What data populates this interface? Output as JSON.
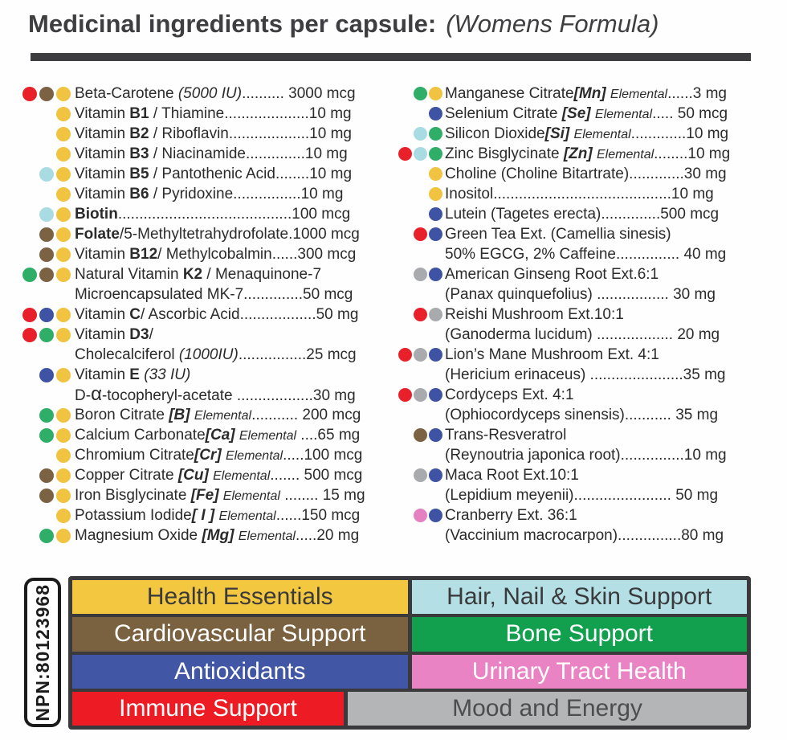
{
  "title": {
    "main": "Medicinal ingredients per capsule:",
    "sub": "(Womens Formula)"
  },
  "npn": "NPN:80123968",
  "dot_colors": {
    "red": "#e8202a",
    "brown": "#7b6243",
    "yellow": "#f0c340",
    "lightblue": "#a9dce2",
    "green": "#2fae68",
    "blue": "#3f53a4",
    "gray": "#a8aaad",
    "pink": "#e581c1"
  },
  "ingredients": {
    "left": [
      {
        "dots": [
          "red",
          "brown",
          "yellow"
        ],
        "segments": [
          {
            "t": "Beta-Carotene ",
            "s": ""
          },
          {
            "t": "(5000 IU)",
            "s": "i"
          },
          {
            "t": ".......... 3000 mcg",
            "s": ""
          }
        ]
      },
      {
        "dots": [
          "yellow"
        ],
        "segments": [
          {
            "t": "Vitamin ",
            "s": ""
          },
          {
            "t": "B1",
            "s": "b"
          },
          {
            "t": " / Thiamine....................10 mg",
            "s": ""
          }
        ]
      },
      {
        "dots": [
          "yellow"
        ],
        "segments": [
          {
            "t": "Vitamin ",
            "s": ""
          },
          {
            "t": "B2",
            "s": "b"
          },
          {
            "t": " / Riboflavin...................10 mg",
            "s": ""
          }
        ]
      },
      {
        "dots": [
          "yellow"
        ],
        "segments": [
          {
            "t": "Vitamin ",
            "s": ""
          },
          {
            "t": "B3",
            "s": "b"
          },
          {
            "t": " / Niacinamide..............10 mg",
            "s": ""
          }
        ]
      },
      {
        "dots": [
          "lightblue",
          "yellow"
        ],
        "segments": [
          {
            "t": "Vitamin ",
            "s": ""
          },
          {
            "t": "B5",
            "s": "b"
          },
          {
            "t": " / Pantothenic Acid........10 mg",
            "s": ""
          }
        ]
      },
      {
        "dots": [
          "yellow"
        ],
        "segments": [
          {
            "t": "Vitamin ",
            "s": ""
          },
          {
            "t": "B6",
            "s": "b"
          },
          {
            "t": " / Pyridoxine................10 mg",
            "s": ""
          }
        ]
      },
      {
        "dots": [
          "lightblue",
          "yellow"
        ],
        "segments": [
          {
            "t": "Biotin",
            "s": "b"
          },
          {
            "t": ".........................................100  mcg",
            "s": ""
          }
        ]
      },
      {
        "dots": [
          "brown",
          "yellow"
        ],
        "segments": [
          {
            "t": "Folate",
            "s": "b"
          },
          {
            "t": "/5-Methyltetrahydrofolate.1000 mcg",
            "s": ""
          }
        ]
      },
      {
        "dots": [
          "brown",
          "yellow"
        ],
        "segments": [
          {
            "t": "Vitamin ",
            "s": ""
          },
          {
            "t": "B12",
            "s": "b"
          },
          {
            "t": "/ Methylcobalmin......300 mcg",
            "s": ""
          }
        ]
      },
      {
        "dots": [
          "green",
          "brown",
          "yellow"
        ],
        "segments": [
          {
            "t": "Natural Vitamin ",
            "s": ""
          },
          {
            "t": "K2",
            "s": "b"
          },
          {
            "t": " / Menaquinone-7",
            "s": ""
          }
        ]
      },
      {
        "dots": [],
        "segments": [
          {
            "t": "Microencapsulated  MK-7..............50  mcg",
            "s": ""
          }
        ]
      },
      {
        "dots": [
          "red",
          "blue",
          "yellow"
        ],
        "segments": [
          {
            "t": "Vitamin ",
            "s": ""
          },
          {
            "t": "C",
            "s": "b"
          },
          {
            "t": "/ Ascorbic Acid..................50 mg",
            "s": ""
          }
        ]
      },
      {
        "dots": [
          "red",
          "green",
          "yellow"
        ],
        "segments": [
          {
            "t": "Vitamin ",
            "s": ""
          },
          {
            "t": "D3",
            "s": "b"
          },
          {
            "t": "/",
            "s": ""
          }
        ]
      },
      {
        "dots": [],
        "segments": [
          {
            "t": "Cholecalciferol ",
            "s": ""
          },
          {
            "t": "(1000IU)",
            "s": "i"
          },
          {
            "t": "................25  mcg",
            "s": ""
          }
        ]
      },
      {
        "dots": [
          "blue",
          "yellow"
        ],
        "segments": [
          {
            "t": "Vitamin ",
            "s": ""
          },
          {
            "t": "E",
            "s": "b"
          },
          {
            "t": " ",
            "s": ""
          },
          {
            "t": "(33 IU)",
            "s": "i"
          }
        ]
      },
      {
        "dots": [],
        "segments": [
          {
            "t": "D-",
            "s": ""
          },
          {
            "t": "α",
            "s": "a"
          },
          {
            "t": "-tocopheryl-acetate  ..................30 mg",
            "s": ""
          }
        ]
      },
      {
        "dots": [
          "green",
          "yellow"
        ],
        "segments": [
          {
            "t": "Boron Citrate ",
            "s": ""
          },
          {
            "t": "[B]",
            "s": "bi"
          },
          {
            "t": " ",
            "s": ""
          },
          {
            "t": "Elemental",
            "s": "e"
          },
          {
            "t": "........... 200 mcg",
            "s": ""
          }
        ]
      },
      {
        "dots": [
          "green",
          "yellow"
        ],
        "segments": [
          {
            "t": "Calcium Carbonate",
            "s": ""
          },
          {
            "t": "[Ca]",
            "s": "bi"
          },
          {
            "t": " ",
            "s": ""
          },
          {
            "t": "Elemental",
            "s": "e"
          },
          {
            "t": " ....65 mg",
            "s": ""
          }
        ]
      },
      {
        "dots": [
          "yellow"
        ],
        "segments": [
          {
            "t": "Chromium Citrate",
            "s": ""
          },
          {
            "t": "[Cr]",
            "s": "bi"
          },
          {
            "t": " ",
            "s": ""
          },
          {
            "t": "Elemental",
            "s": "e"
          },
          {
            "t": ".....100 mcg",
            "s": ""
          }
        ]
      },
      {
        "dots": [
          "brown",
          "yellow"
        ],
        "segments": [
          {
            "t": "Copper Citrate ",
            "s": ""
          },
          {
            "t": "[Cu]",
            "s": "bi"
          },
          {
            "t": " ",
            "s": ""
          },
          {
            "t": "Elemental",
            "s": "e"
          },
          {
            "t": "....... 500 mcg",
            "s": ""
          }
        ]
      },
      {
        "dots": [
          "brown",
          "yellow"
        ],
        "segments": [
          {
            "t": "Iron Bisglycinate ",
            "s": ""
          },
          {
            "t": "[Fe]",
            "s": "bi"
          },
          {
            "t": " ",
            "s": ""
          },
          {
            "t": "Elemental",
            "s": "e"
          },
          {
            "t": " ........ 15 mg",
            "s": ""
          }
        ]
      },
      {
        "dots": [
          "yellow"
        ],
        "segments": [
          {
            "t": "Potassium Iodide",
            "s": ""
          },
          {
            "t": "[ I ]",
            "s": "bi"
          },
          {
            "t": " ",
            "s": ""
          },
          {
            "t": "Elemental",
            "s": "e"
          },
          {
            "t": "......150 mcg",
            "s": ""
          }
        ]
      },
      {
        "dots": [
          "green",
          "yellow"
        ],
        "segments": [
          {
            "t": "Magnesium Oxide ",
            "s": ""
          },
          {
            "t": "[Mg]",
            "s": "bi"
          },
          {
            "t": " ",
            "s": ""
          },
          {
            "t": "Elemental",
            "s": "e"
          },
          {
            "t": ".....20 mg",
            "s": ""
          }
        ]
      }
    ],
    "right": [
      {
        "dots": [
          "green",
          "yellow"
        ],
        "segments": [
          {
            "t": "Manganese Citrate",
            "s": ""
          },
          {
            "t": "[Mn]",
            "s": "bi"
          },
          {
            "t": " ",
            "s": ""
          },
          {
            "t": "Elemental",
            "s": "e"
          },
          {
            "t": "......3 mg",
            "s": ""
          }
        ]
      },
      {
        "dots": [
          "blue"
        ],
        "segments": [
          {
            "t": "Selenium Citrate ",
            "s": ""
          },
          {
            "t": "[Se]",
            "s": "bi"
          },
          {
            "t": " ",
            "s": ""
          },
          {
            "t": "Elemental",
            "s": "e"
          },
          {
            "t": "..... 50 mcg",
            "s": ""
          }
        ]
      },
      {
        "dots": [
          "lightblue",
          "green"
        ],
        "segments": [
          {
            "t": "Silicon Dioxide",
            "s": ""
          },
          {
            "t": "[Si]",
            "s": "bi"
          },
          {
            "t": " ",
            "s": ""
          },
          {
            "t": "Elemental",
            "s": "e"
          },
          {
            "t": ".............10 mg",
            "s": ""
          }
        ]
      },
      {
        "dots": [
          "red",
          "lightblue",
          "green"
        ],
        "segments": [
          {
            "t": "Zinc Bisglycinate ",
            "s": ""
          },
          {
            "t": "[Zn]",
            "s": "bi"
          },
          {
            "t": " ",
            "s": ""
          },
          {
            "t": "Elemental",
            "s": "e"
          },
          {
            "t": "........10 mg",
            "s": ""
          }
        ]
      },
      {
        "dots": [
          "yellow"
        ],
        "segments": [
          {
            "t": "Choline (Choline Bitartrate).............30 mg",
            "s": ""
          }
        ]
      },
      {
        "dots": [
          "yellow"
        ],
        "segments": [
          {
            "t": "Inositol..........................................10 mg",
            "s": ""
          }
        ]
      },
      {
        "dots": [
          "blue"
        ],
        "segments": [
          {
            "t": "Lutein  (Tagetes  erecta)..............500  mcg",
            "s": ""
          }
        ]
      },
      {
        "dots": [
          "red",
          "blue"
        ],
        "segments": [
          {
            "t": "Green Tea Ext. (Camellia sinesis)",
            "s": ""
          }
        ]
      },
      {
        "dots": [],
        "segments": [
          {
            "t": "50% EGCG, 2% Caffeine............... 40 mg",
            "s": ""
          }
        ]
      },
      {
        "dots": [
          "gray",
          "blue"
        ],
        "segments": [
          {
            "t": "American Ginseng Root Ext.6:1",
            "s": ""
          }
        ]
      },
      {
        "dots": [],
        "segments": [
          {
            "t": "(Panax  quinquefolius)  ................. 30  mg",
            "s": ""
          }
        ]
      },
      {
        "dots": [
          "red",
          "gray"
        ],
        "segments": [
          {
            "t": "Reishi Mushroom Ext.10:1",
            "s": ""
          }
        ]
      },
      {
        "dots": [],
        "segments": [
          {
            "t": "(Ganoderma lucidum) .................. 20 mg",
            "s": ""
          }
        ]
      },
      {
        "dots": [
          "red",
          "gray",
          "blue"
        ],
        "segments": [
          {
            "t": "Lion’s Mane Mushroom Ext. 4:1",
            "s": ""
          }
        ]
      },
      {
        "dots": [],
        "segments": [
          {
            "t": "(Hericium erinaceus) ......................35 mg",
            "s": ""
          }
        ]
      },
      {
        "dots": [
          "red",
          "gray",
          "blue"
        ],
        "segments": [
          {
            "t": "Cordyceps Ext.  4:1",
            "s": ""
          }
        ]
      },
      {
        "dots": [],
        "segments": [
          {
            "t": "(Ophiocordyceps  sinensis)........... 35  mg",
            "s": ""
          }
        ]
      },
      {
        "dots": [
          "brown",
          "blue"
        ],
        "segments": [
          {
            "t": "Trans-Resveratrol",
            "s": ""
          }
        ]
      },
      {
        "dots": [],
        "segments": [
          {
            "t": "(Reynoutria japonica root)...............10 mg",
            "s": ""
          }
        ]
      },
      {
        "dots": [
          "gray",
          "blue"
        ],
        "segments": [
          {
            "t": "Maca Root Ext.10:1",
            "s": ""
          }
        ]
      },
      {
        "dots": [],
        "segments": [
          {
            "t": "(Lepidium  meyenii)....................... 50  mg",
            "s": ""
          }
        ]
      },
      {
        "dots": [
          "pink",
          "blue"
        ],
        "segments": [
          {
            "t": "Cranberry Ext. 36:1",
            "s": ""
          }
        ]
      },
      {
        "dots": [],
        "segments": [
          {
            "t": "(Vaccinium  macrocarpon)...............80 mg",
            "s": ""
          }
        ]
      }
    ]
  },
  "legend": {
    "rows": [
      [
        {
          "label": "Health Essentials",
          "bg": "#f3c73f",
          "fg": "#3a3a3c",
          "size": "normal"
        },
        {
          "label": "Hair, Nail & Skin Support",
          "bg": "#b3dfe5",
          "fg": "#3a3a3c",
          "size": "normal"
        }
      ],
      [
        {
          "label": "Cardiovascular Support",
          "bg": "#7a6240",
          "fg": "#ffffff",
          "size": "normal"
        },
        {
          "label": "Bone Support",
          "bg": "#12a04f",
          "fg": "#ffffff",
          "size": "normal"
        }
      ],
      [
        {
          "label": "Antioxidants",
          "bg": "#4156a5",
          "fg": "#ffffff",
          "size": "normal"
        },
        {
          "label": "Urinary Tract Health",
          "bg": "#e983c3",
          "fg": "#ffffff",
          "size": "normal"
        }
      ],
      [
        {
          "label": "Immune Support",
          "bg": "#ed1c24",
          "fg": "#ffffff",
          "size": "narrow"
        },
        {
          "label": "Mood and Energy",
          "bg": "#b3b5b7",
          "fg": "#4d4d4f",
          "size": "wide"
        }
      ]
    ]
  }
}
